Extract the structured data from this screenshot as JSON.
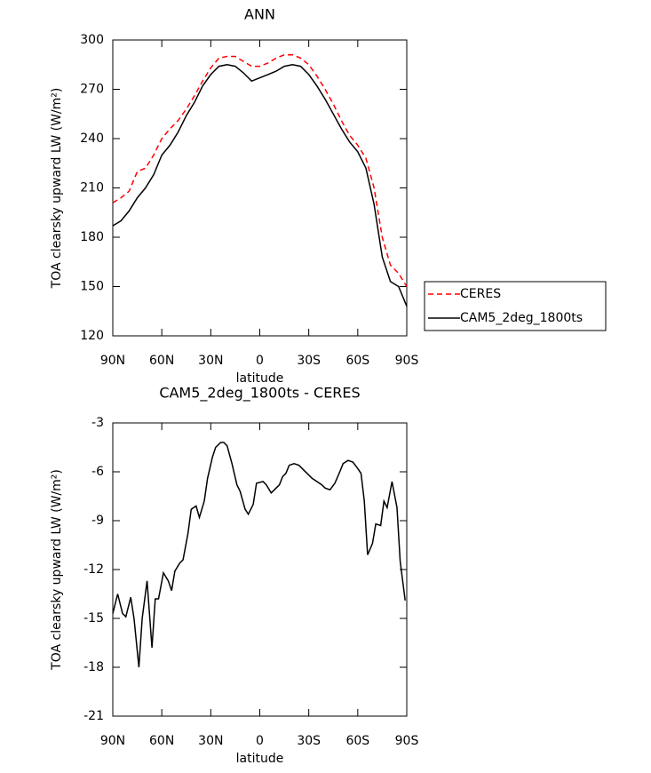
{
  "chart_data": [
    {
      "type": "line",
      "title": "ANN",
      "xlabel": "latitude",
      "ylabel": "TOA clearsky upward LW (W/m²)",
      "x": [
        90,
        85,
        80,
        75,
        70,
        65,
        60,
        55,
        50,
        45,
        40,
        35,
        30,
        25,
        20,
        15,
        10,
        5,
        0,
        -5,
        -10,
        -15,
        -20,
        -25,
        -30,
        -35,
        -40,
        -45,
        -50,
        -55,
        -60,
        -65,
        -70,
        -75,
        -80,
        -85,
        -90
      ],
      "series": [
        {
          "name": "CERES",
          "color": "#ff0000",
          "line_style": "dashed",
          "values": [
            201,
            204,
            208,
            220,
            222,
            230,
            240,
            246,
            251,
            258,
            266,
            275,
            283,
            289,
            290,
            290,
            287,
            284,
            284,
            286,
            289,
            291,
            291,
            289,
            285,
            278,
            270,
            261,
            251,
            242,
            236,
            228,
            210,
            180,
            163,
            158,
            150
          ]
        },
        {
          "name": "CAM5_2deg_1800ts",
          "color": "#000000",
          "line_style": "solid",
          "values": [
            187,
            190,
            196,
            204,
            210,
            218,
            230,
            236,
            244,
            254,
            262,
            272,
            279,
            284,
            285,
            284,
            280,
            275,
            277,
            279,
            281,
            284,
            285,
            284,
            279,
            272,
            264,
            255,
            246,
            238,
            232,
            222,
            200,
            168,
            153,
            150,
            138
          ]
        }
      ],
      "xlim": [
        90,
        -90
      ],
      "xticks": [
        {
          "value": 90,
          "label": "90N"
        },
        {
          "value": 60,
          "label": "60N"
        },
        {
          "value": 30,
          "label": "30N"
        },
        0,
        {
          "value": -30,
          "label": "30S"
        },
        {
          "value": -60,
          "label": "60S"
        },
        {
          "value": -90,
          "label": "90S"
        }
      ],
      "ylim": [
        120,
        300
      ],
      "yticks": [
        120,
        150,
        180,
        210,
        240,
        270,
        300
      ],
      "legend": "right"
    },
    {
      "type": "line",
      "title": "CAM5_2deg_1800ts - CERES",
      "xlabel": "latitude",
      "ylabel": "TOA clearsky upward LW (W/m²)",
      "x": [
        90,
        87,
        84,
        82,
        79,
        77,
        74,
        72,
        69,
        66,
        64,
        62,
        59,
        56,
        54,
        52,
        49,
        47,
        44,
        42,
        39,
        37,
        34,
        32,
        29,
        27,
        24,
        22,
        20,
        17,
        14,
        12,
        9,
        7,
        4,
        2,
        -2,
        -4,
        -7,
        -10,
        -12,
        -14,
        -16,
        -18,
        -21,
        -24,
        -27,
        -29,
        -32,
        -35,
        -38,
        -40,
        -43,
        -46,
        -49,
        -51,
        -54,
        -57,
        -60,
        -62,
        -64,
        -66,
        -69,
        -71,
        -74,
        -76,
        -78,
        -81,
        -84,
        -86,
        -89
      ],
      "values": [
        -14.7,
        -13.5,
        -14.7,
        -14.9,
        -13.7,
        -15,
        -18,
        -15,
        -12.7,
        -16.8,
        -13.8,
        -13.8,
        -12.2,
        -12.7,
        -13.3,
        -12.1,
        -11.6,
        -11.4,
        -9.8,
        -8.3,
        -8.1,
        -8.8,
        -7.8,
        -6.4,
        -5.1,
        -4.5,
        -4.2,
        -4.2,
        -4.4,
        -5.5,
        -6.8,
        -7.2,
        -8.3,
        -8.6,
        -8,
        -6.7,
        -6.6,
        -6.8,
        -7.3,
        -7,
        -6.8,
        -6.3,
        -6.1,
        -5.6,
        -5.5,
        -5.6,
        -5.9,
        -6.1,
        -6.4,
        -6.6,
        -6.8,
        -7,
        -7.1,
        -6.7,
        -6,
        -5.5,
        -5.3,
        -5.4,
        -5.8,
        -6.1,
        -7.8,
        -11.1,
        -10.4,
        -9.2,
        -9.3,
        -7.8,
        -8.2,
        -6.6,
        -8.2,
        -11.5,
        -13.9
      ],
      "color": "#000000",
      "xlim": [
        90,
        -90
      ],
      "xticks": [
        {
          "value": 90,
          "label": "90N"
        },
        {
          "value": 60,
          "label": "60N"
        },
        {
          "value": 30,
          "label": "30N"
        },
        0,
        {
          "value": -30,
          "label": "30S"
        },
        {
          "value": -60,
          "label": "60S"
        },
        {
          "value": -90,
          "label": "90S"
        }
      ],
      "ylim": [
        -21,
        -3
      ],
      "yticks": [
        -21,
        -18,
        -15,
        -12,
        -9,
        -6,
        -3
      ]
    }
  ]
}
